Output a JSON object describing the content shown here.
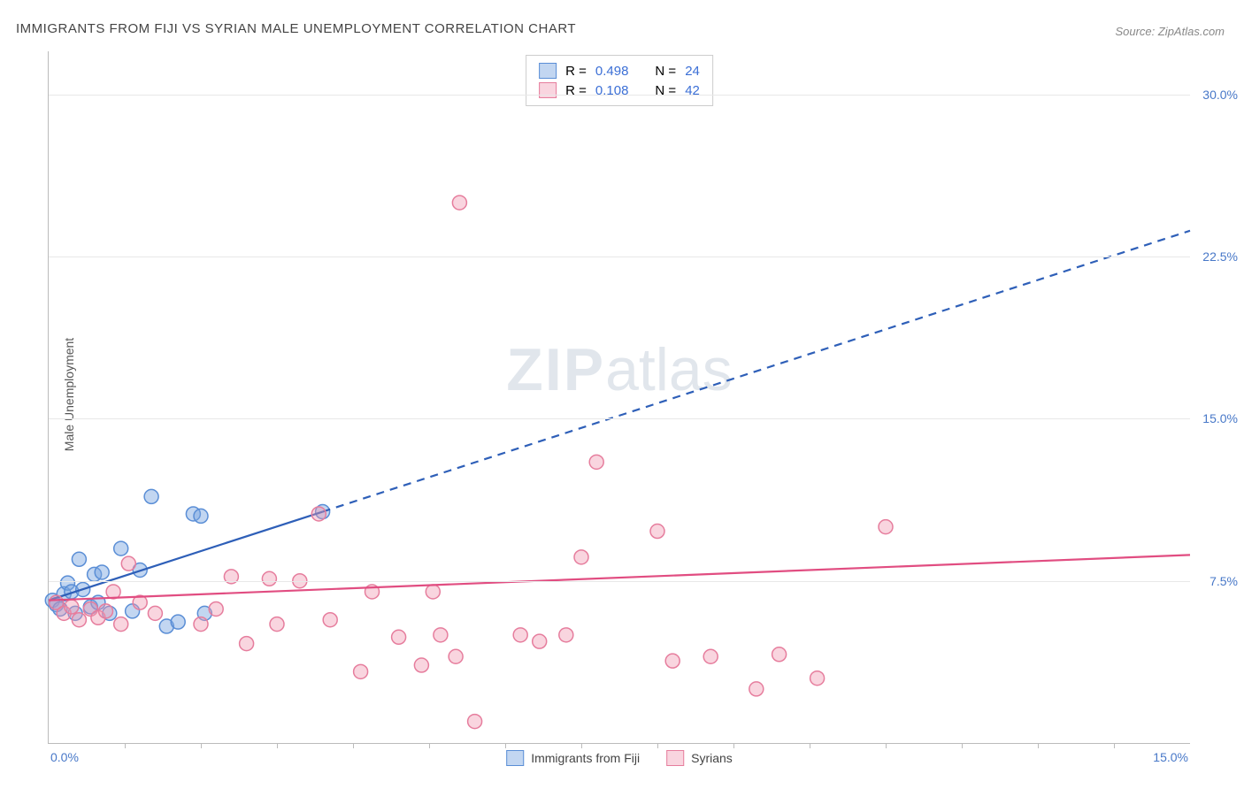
{
  "title": "IMMIGRANTS FROM FIJI VS SYRIAN MALE UNEMPLOYMENT CORRELATION CHART",
  "source": "Source: ZipAtlas.com",
  "ylabel": "Male Unemployment",
  "watermark_zip": "ZIP",
  "watermark_atlas": "atlas",
  "chart": {
    "type": "scatter",
    "xlim": [
      0,
      15
    ],
    "ylim": [
      0,
      32
    ],
    "x_tick_min_label": "0.0%",
    "x_tick_max_label": "15.0%",
    "y_ticks": [
      7.5,
      15.0,
      22.5,
      30.0
    ],
    "y_tick_labels": [
      "7.5%",
      "15.0%",
      "22.5%",
      "30.0%"
    ],
    "x_minor_ticks": [
      1,
      2,
      3,
      4,
      5,
      6,
      7,
      8,
      9,
      10,
      11,
      12,
      13,
      14
    ],
    "background_color": "#ffffff",
    "grid_color": "#e8e8e8",
    "axis_color": "#bbbbbb",
    "tick_label_color": "#4878c8",
    "marker_radius": 8,
    "marker_stroke_width": 1.5,
    "series": [
      {
        "name": "Immigrants from Fiji",
        "fill_color": "rgba(120,165,225,0.45)",
        "stroke_color": "#5a8ed6",
        "R_label": "R =",
        "R_value": "0.498",
        "N_label": "N =",
        "N_value": "24",
        "points": [
          [
            0.05,
            6.6
          ],
          [
            0.1,
            6.4
          ],
          [
            0.15,
            6.2
          ],
          [
            0.2,
            6.9
          ],
          [
            0.25,
            7.4
          ],
          [
            0.3,
            7.0
          ],
          [
            0.35,
            6.0
          ],
          [
            0.4,
            8.5
          ],
          [
            0.45,
            7.1
          ],
          [
            0.55,
            6.3
          ],
          [
            0.6,
            7.8
          ],
          [
            0.65,
            6.5
          ],
          [
            0.7,
            7.9
          ],
          [
            0.8,
            6.0
          ],
          [
            0.95,
            9.0
          ],
          [
            1.1,
            6.1
          ],
          [
            1.2,
            8.0
          ],
          [
            1.35,
            11.4
          ],
          [
            1.55,
            5.4
          ],
          [
            1.7,
            5.6
          ],
          [
            1.9,
            10.6
          ],
          [
            2.0,
            10.5
          ],
          [
            2.05,
            6.0
          ],
          [
            3.6,
            10.7
          ]
        ],
        "trend_solid": {
          "x1": 0.0,
          "y1": 6.6,
          "x2": 3.6,
          "y2": 10.7
        },
        "trend_dash": {
          "x1": 3.6,
          "y1": 10.7,
          "x2": 15.0,
          "y2": 23.7
        },
        "line_color": "#2e5fb8",
        "line_width": 2.2,
        "dash": "9 7"
      },
      {
        "name": "Syrians",
        "fill_color": "rgba(240,150,175,0.4)",
        "stroke_color": "#e67d9d",
        "R_label": "R =",
        "R_value": "0.108",
        "N_label": "N =",
        "N_value": "42",
        "points": [
          [
            0.1,
            6.5
          ],
          [
            0.2,
            6.0
          ],
          [
            0.3,
            6.3
          ],
          [
            0.4,
            5.7
          ],
          [
            0.55,
            6.2
          ],
          [
            0.65,
            5.8
          ],
          [
            0.75,
            6.1
          ],
          [
            0.85,
            7.0
          ],
          [
            0.95,
            5.5
          ],
          [
            1.05,
            8.3
          ],
          [
            1.2,
            6.5
          ],
          [
            1.4,
            6.0
          ],
          [
            2.0,
            5.5
          ],
          [
            2.2,
            6.2
          ],
          [
            2.4,
            7.7
          ],
          [
            2.6,
            4.6
          ],
          [
            2.9,
            7.6
          ],
          [
            3.0,
            5.5
          ],
          [
            3.3,
            7.5
          ],
          [
            3.55,
            10.6
          ],
          [
            3.7,
            5.7
          ],
          [
            4.1,
            3.3
          ],
          [
            4.25,
            7.0
          ],
          [
            4.6,
            4.9
          ],
          [
            4.9,
            3.6
          ],
          [
            5.05,
            7.0
          ],
          [
            5.15,
            5.0
          ],
          [
            5.35,
            4.0
          ],
          [
            5.4,
            25.0
          ],
          [
            5.6,
            1.0
          ],
          [
            6.2,
            5.0
          ],
          [
            6.45,
            4.7
          ],
          [
            6.8,
            5.0
          ],
          [
            7.0,
            8.6
          ],
          [
            7.2,
            13.0
          ],
          [
            8.0,
            9.8
          ],
          [
            8.2,
            3.8
          ],
          [
            8.7,
            4.0
          ],
          [
            9.3,
            2.5
          ],
          [
            9.6,
            4.1
          ],
          [
            10.1,
            3.0
          ],
          [
            11.0,
            10.0
          ]
        ],
        "trend_solid": {
          "x1": 0.0,
          "y1": 6.6,
          "x2": 15.0,
          "y2": 8.7
        },
        "line_color": "#e14d81",
        "line_width": 2.2
      }
    ],
    "legend_bottom": [
      {
        "label": "Immigrants from Fiji",
        "fill": "rgba(120,165,225,0.45)",
        "stroke": "#5a8ed6"
      },
      {
        "label": "Syrians",
        "fill": "rgba(240,150,175,0.4)",
        "stroke": "#e67d9d"
      }
    ]
  }
}
